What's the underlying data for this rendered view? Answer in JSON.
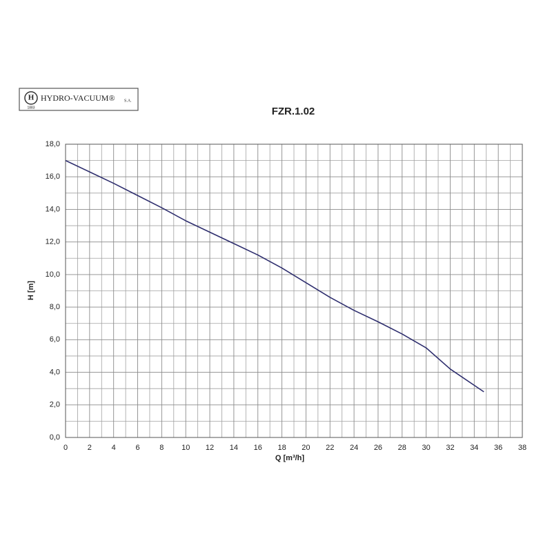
{
  "logo": {
    "name": "HYDRO-VACUUM®",
    "suffix": "S.A.",
    "year": "1883"
  },
  "chart_data": {
    "type": "line",
    "title": "FZR.1.02",
    "x_label": "Q  [m³/h]",
    "y_label": "H  [m]",
    "x": [
      0,
      2,
      4,
      6,
      8,
      10,
      12,
      14,
      16,
      18,
      20,
      22,
      24,
      26,
      28,
      30,
      32,
      34.8
    ],
    "series": [
      {
        "color": "#2e2e6e",
        "values": [
          17.0,
          16.3,
          15.6,
          14.85,
          14.1,
          13.3,
          12.6,
          11.9,
          11.2,
          10.4,
          9.5,
          8.6,
          7.8,
          7.1,
          6.35,
          5.5,
          4.2,
          2.8
        ]
      }
    ],
    "xlim": [
      0,
      38
    ],
    "ylim": [
      0,
      18
    ],
    "xticks": [
      0,
      2,
      4,
      6,
      8,
      10,
      12,
      14,
      16,
      18,
      20,
      22,
      24,
      26,
      28,
      30,
      32,
      34,
      36,
      38
    ],
    "yticks": [
      {
        "value": 0,
        "label": "0,0"
      },
      {
        "value": 2,
        "label": "2,0"
      },
      {
        "value": 4,
        "label": "4,0"
      },
      {
        "value": 6,
        "label": "6,0"
      },
      {
        "value": 8,
        "label": "8,0"
      },
      {
        "value": 10,
        "label": "10,0"
      },
      {
        "value": 12,
        "label": "12,0"
      },
      {
        "value": 14,
        "label": "14,0"
      },
      {
        "value": 16,
        "label": "16,0"
      },
      {
        "value": 18,
        "label": "18,0"
      }
    ],
    "grid": true
  }
}
